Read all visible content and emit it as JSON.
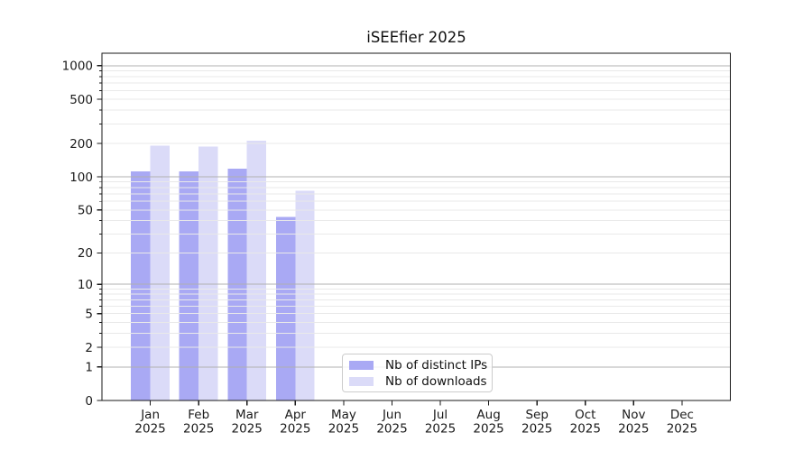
{
  "figure": {
    "background": "#ffffff"
  },
  "chart_data": {
    "type": "bar",
    "title": "iSEEfier 2025",
    "scale": "log1p",
    "grid": true,
    "legend_position": "inside lower-center-left",
    "x_axis": {
      "months": [
        "Jan",
        "Feb",
        "Mar",
        "Apr",
        "May",
        "Jun",
        "Jul",
        "Aug",
        "Sep",
        "Oct",
        "Nov",
        "Dec"
      ],
      "year": "2025"
    },
    "y_axis": {
      "ticks": [
        0,
        1,
        2,
        5,
        10,
        20,
        50,
        100,
        200,
        500,
        1000
      ],
      "major_gridlines": [
        1,
        10,
        100,
        1000
      ],
      "minor_gridlines": [
        2,
        3,
        4,
        5,
        6,
        7,
        8,
        9,
        20,
        30,
        40,
        50,
        60,
        70,
        80,
        90,
        200,
        300,
        400,
        500,
        600,
        700,
        800,
        900
      ],
      "ymin": 0,
      "ymax": 1300
    },
    "series": [
      {
        "name": "Nb of distinct IPs",
        "color": "#a9a9f4",
        "values": [
          112,
          112,
          119,
          43,
          0,
          0,
          0,
          0,
          0,
          0,
          0,
          0
        ]
      },
      {
        "name": "Nb of downloads",
        "color": "#dbdbf8",
        "values": [
          191,
          187,
          212,
          75,
          0,
          0,
          0,
          0,
          0,
          0,
          0,
          0
        ]
      }
    ]
  },
  "style": {
    "axis_color": "#1a1a1a",
    "major_grid_color": "#b0b0b0",
    "minor_grid_color": "#e9e9e9",
    "text_color": "#1a1a1a",
    "legend_border_color": "#cccccc"
  }
}
